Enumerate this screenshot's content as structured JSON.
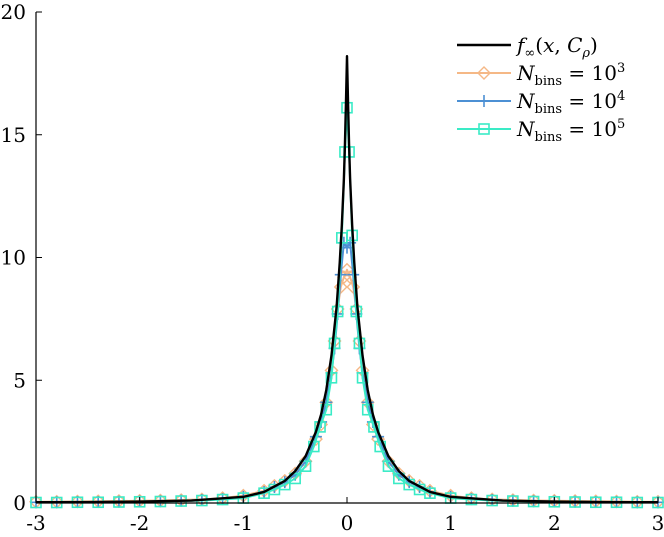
{
  "chart_data": {
    "type": "line",
    "xlim": [
      -3,
      3
    ],
    "ylim": [
      0,
      20
    ],
    "x_ticks": [
      -3,
      -2,
      -1,
      0,
      1,
      2,
      3
    ],
    "y_ticks": [
      0,
      5,
      10,
      15,
      20
    ],
    "x_tick_labels": [
      "-3",
      "-2",
      "-1",
      "0",
      "1",
      "2",
      "3"
    ],
    "y_tick_labels": [
      "0",
      "5",
      "10",
      "15",
      "20"
    ],
    "grid": false,
    "legend_position": "top-right",
    "series": [
      {
        "name": "f_∞(x, C_ρ)",
        "color": "#000000",
        "marker": "none",
        "x": [
          -3,
          -2.5,
          -2,
          -1.5,
          -1,
          -0.8,
          -0.6,
          -0.5,
          -0.4,
          -0.3,
          -0.25,
          -0.2,
          -0.15,
          -0.1,
          -0.07,
          -0.05,
          -0.03,
          -0.02,
          -0.01,
          0,
          0.01,
          0.02,
          0.03,
          0.05,
          0.07,
          0.1,
          0.15,
          0.2,
          0.25,
          0.3,
          0.4,
          0.5,
          0.6,
          0.8,
          1,
          1.5,
          2,
          2.5,
          3
        ],
        "y": [
          0.03,
          0.04,
          0.06,
          0.1,
          0.25,
          0.45,
          0.9,
          1.3,
          1.9,
          2.9,
          3.6,
          4.6,
          6.0,
          8.0,
          9.8,
          11.3,
          13.2,
          14.6,
          16.3,
          18.2,
          16.3,
          14.6,
          13.2,
          11.3,
          9.8,
          8.0,
          6.0,
          4.6,
          3.6,
          2.9,
          1.9,
          1.3,
          0.9,
          0.45,
          0.25,
          0.1,
          0.06,
          0.04,
          0.03
        ]
      },
      {
        "name": "N_bins = 10^3",
        "color": "#F5B886",
        "marker": "diamond",
        "x": [
          -3,
          -2.8,
          -2.6,
          -2.4,
          -2.2,
          -2,
          -1.8,
          -1.6,
          -1.4,
          -1.2,
          -1,
          -0.8,
          -0.7,
          -0.6,
          -0.5,
          -0.4,
          -0.3,
          -0.25,
          -0.2,
          -0.15,
          -0.12,
          -0.09,
          -0.06,
          -0.03,
          0,
          0.03,
          0.06,
          0.09,
          0.12,
          0.15,
          0.2,
          0.25,
          0.3,
          0.4,
          0.5,
          0.6,
          0.7,
          0.8,
          1,
          1.2,
          1.4,
          1.6,
          1.8,
          2,
          2.2,
          2.4,
          2.6,
          2.8,
          3
        ],
        "y": [
          0.05,
          0.05,
          0.06,
          0.07,
          0.08,
          0.09,
          0.1,
          0.12,
          0.15,
          0.2,
          0.3,
          0.5,
          0.7,
          0.9,
          1.2,
          1.7,
          2.6,
          3.2,
          4.1,
          5.4,
          6.6,
          7.9,
          8.8,
          9.2,
          9.5,
          9.2,
          8.8,
          7.9,
          6.6,
          5.4,
          4.1,
          3.2,
          2.6,
          1.7,
          1.2,
          0.9,
          0.7,
          0.5,
          0.3,
          0.2,
          0.15,
          0.12,
          0.1,
          0.09,
          0.08,
          0.07,
          0.06,
          0.05,
          0.05
        ]
      },
      {
        "name": "N_bins = 10^4",
        "color": "#4C90D4",
        "marker": "plus",
        "x": [
          -3,
          -2.8,
          -2.6,
          -2.4,
          -2.2,
          -2,
          -1.8,
          -1.6,
          -1.4,
          -1.2,
          -1,
          -0.8,
          -0.7,
          -0.6,
          -0.5,
          -0.4,
          -0.3,
          -0.25,
          -0.2,
          -0.15,
          -0.12,
          -0.09,
          -0.06,
          -0.03,
          0,
          0.03,
          0.06,
          0.09,
          0.12,
          0.15,
          0.2,
          0.25,
          0.3,
          0.4,
          0.5,
          0.6,
          0.7,
          0.8,
          1,
          1.2,
          1.4,
          1.6,
          1.8,
          2,
          2.2,
          2.4,
          2.6,
          2.8,
          3
        ],
        "y": [
          0.03,
          0.03,
          0.04,
          0.04,
          0.05,
          0.06,
          0.07,
          0.09,
          0.12,
          0.16,
          0.25,
          0.45,
          0.65,
          0.85,
          1.15,
          1.7,
          2.7,
          3.3,
          4.1,
          5.3,
          6.3,
          7.7,
          9.3,
          10.6,
          10.4,
          10.6,
          9.3,
          7.7,
          6.3,
          5.3,
          4.1,
          3.3,
          2.7,
          1.7,
          1.15,
          0.85,
          0.65,
          0.45,
          0.25,
          0.16,
          0.12,
          0.09,
          0.07,
          0.06,
          0.05,
          0.04,
          0.04,
          0.03,
          0.03
        ]
      },
      {
        "name": "N_bins = 10^5",
        "color": "#3AEBC6",
        "marker": "square",
        "x": [
          -3,
          -2.8,
          -2.6,
          -2.4,
          -2.2,
          -2,
          -1.8,
          -1.6,
          -1.4,
          -1.2,
          -1,
          -0.8,
          -0.7,
          -0.6,
          -0.5,
          -0.4,
          -0.32,
          -0.26,
          -0.2,
          -0.15,
          -0.12,
          -0.09,
          -0.05,
          -0.02,
          0,
          0.02,
          0.05,
          0.09,
          0.12,
          0.15,
          0.2,
          0.26,
          0.32,
          0.4,
          0.5,
          0.6,
          0.7,
          0.8,
          1,
          1.2,
          1.4,
          1.6,
          1.8,
          2,
          2.2,
          2.4,
          2.6,
          2.8,
          3
        ],
        "y": [
          0.02,
          0.02,
          0.03,
          0.03,
          0.04,
          0.05,
          0.06,
          0.08,
          0.1,
          0.14,
          0.2,
          0.4,
          0.55,
          0.75,
          1.0,
          1.5,
          2.3,
          3.1,
          3.8,
          5.1,
          6.5,
          7.8,
          10.8,
          14.3,
          16.1,
          14.3,
          10.9,
          7.8,
          6.5,
          5.1,
          3.8,
          3.1,
          2.3,
          1.5,
          1.0,
          0.75,
          0.55,
          0.4,
          0.2,
          0.14,
          0.1,
          0.08,
          0.06,
          0.05,
          0.04,
          0.03,
          0.03,
          0.02,
          0.02
        ]
      }
    ]
  }
}
